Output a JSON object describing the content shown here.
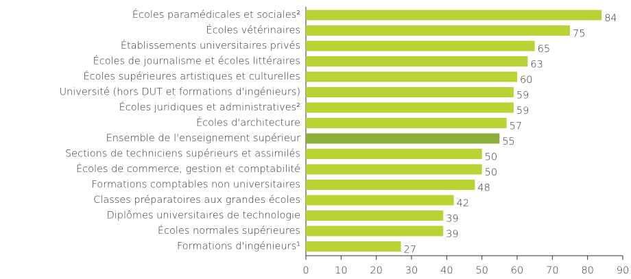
{
  "chart_data": {
    "type": "hbar",
    "categories": [
      "Écoles paramédicales et sociales²",
      "Écoles vétérinaires",
      "Établissements universitaires privés",
      "Écoles de journalisme et écoles littéraires",
      "Écoles supérieures artistiques et culturelles",
      "Université (hors DUT et formations d'ingénieurs)",
      "Écoles juridiques et administratives²",
      "Écoles d'architecture",
      "Ensemble de l'enseignement supérieur",
      "Sections de techniciens supérieurs et assimilés",
      "Écoles de commerce, gestion et comptabilité",
      "Formations comptables non universitaires",
      "Classes préparatoires aux grandes écoles",
      "Diplômes universitaires de technologie",
      "Écoles normales supérieures",
      "Formations d'ingénieurs¹"
    ],
    "values": [
      84,
      75,
      65,
      63,
      60,
      59,
      59,
      57,
      55,
      50,
      50,
      48,
      42,
      39,
      39,
      27
    ],
    "color": "#b7d334",
    "colors": [
      "#b7d334",
      "#b7d334",
      "#b7d334",
      "#b7d334",
      "#b7d334",
      "#b7d334",
      "#b7d334",
      "#b7d334",
      "#8cae3b",
      "#b7d334",
      "#b7d334",
      "#b7d334",
      "#b7d334",
      "#b7d334",
      "#b7d334",
      "#b7d334"
    ],
    "xlim": [
      0,
      90
    ],
    "xticks": [
      0,
      10,
      20,
      30,
      40,
      50,
      60,
      70,
      80,
      90
    ]
  }
}
